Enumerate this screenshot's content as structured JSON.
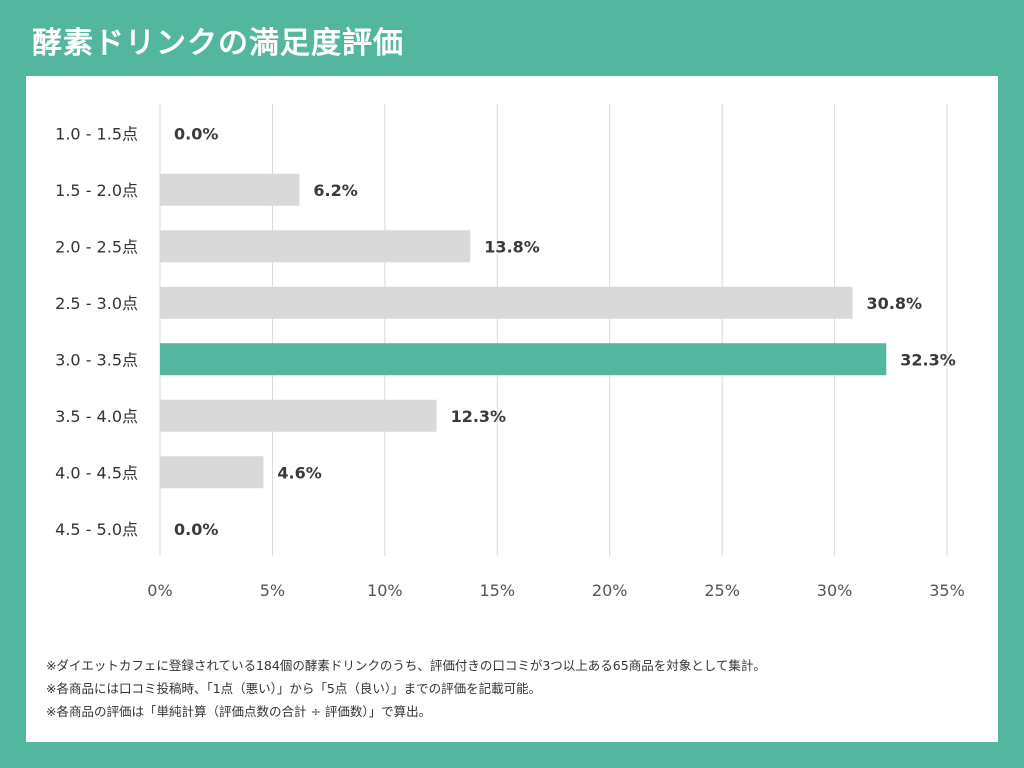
{
  "title": "酵素ドリンクの満足度評価",
  "colors": {
    "background": "#52b79e",
    "bar_default": "#d9d9d9",
    "bar_highlight": "#52b79e",
    "grid": "#d9d9d9"
  },
  "chart_data": {
    "type": "bar",
    "orientation": "horizontal",
    "categories": [
      "1.0 - 1.5点",
      "1.5 - 2.0点",
      "2.0 - 2.5点",
      "2.5 - 3.0点",
      "3.0 - 3.5点",
      "3.5 - 4.0点",
      "4.0 - 4.5点",
      "4.5 - 5.0点"
    ],
    "values": [
      0.0,
      6.2,
      13.8,
      30.8,
      32.3,
      12.3,
      4.6,
      0.0
    ],
    "value_labels": [
      "0.0%",
      "6.2%",
      "13.8%",
      "30.8%",
      "32.3%",
      "12.3%",
      "4.6%",
      "0.0%"
    ],
    "highlight_index": 4,
    "xlim": [
      0,
      35
    ],
    "xticks": [
      0,
      5,
      10,
      15,
      20,
      25,
      30,
      35
    ],
    "xtick_labels": [
      "0%",
      "5%",
      "10%",
      "15%",
      "20%",
      "25%",
      "30%",
      "35%"
    ],
    "grid": true,
    "xlabel": "",
    "ylabel": ""
  },
  "notes": [
    "※ダイエットカフェに登録されている184個の酵素ドリンクのうち、評価付きの口コミが3つ以上ある65商品を対象として集計。",
    "※各商品には口コミ投稿時、「1点（悪い）」から「5点（良い）」までの評価を記載可能。",
    "※各商品の評価は「単純計算（評価点数の合計 ÷ 評価数）」で算出。"
  ]
}
